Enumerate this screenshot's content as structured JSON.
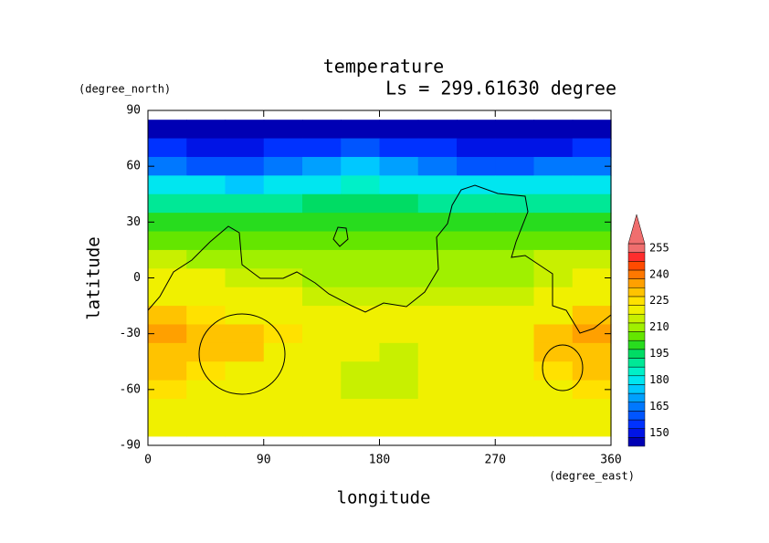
{
  "chart_data": {
    "type": "contour",
    "title": "temperature",
    "subtitle": "Ls = 299.61630 degree",
    "xlabel": "longitude",
    "ylabel": "latitude",
    "xunits": "(degree_east)",
    "yunits": "(degree_north)",
    "xlim": [
      0,
      360
    ],
    "ylim": [
      -90,
      90
    ],
    "xticks": [
      0,
      90,
      180,
      270,
      360
    ],
    "yticks": [
      90,
      60,
      30,
      0,
      -30,
      -60,
      -90
    ],
    "x": [
      15,
      45,
      75,
      105,
      135,
      165,
      195,
      225,
      255,
      285,
      315,
      345
    ],
    "y": [
      80,
      70,
      60,
      50,
      40,
      30,
      20,
      10,
      0,
      -10,
      -20,
      -30,
      -40,
      -50,
      -60,
      -70,
      -80
    ],
    "z": [
      [
        147,
        147,
        147,
        147,
        147,
        147,
        147,
        147,
        147,
        147,
        147,
        147
      ],
      [
        156,
        154,
        153,
        156,
        159,
        161,
        158,
        155,
        154,
        154,
        154,
        156
      ],
      [
        166,
        164,
        161,
        166,
        172,
        176,
        172,
        166,
        164,
        164,
        165,
        166
      ],
      [
        183,
        181,
        179,
        182,
        184,
        186,
        184,
        182,
        182,
        183,
        183,
        183
      ],
      [
        194,
        193,
        193,
        194,
        195,
        196,
        195,
        194,
        194,
        194,
        194,
        194
      ],
      [
        201,
        200,
        200,
        201,
        202,
        203,
        202,
        201,
        201,
        201,
        201,
        201
      ],
      [
        206,
        206,
        206,
        207,
        208,
        209,
        209,
        208,
        208,
        207,
        206,
        206
      ],
      [
        216,
        214,
        213,
        212,
        211,
        212,
        212,
        211,
        211,
        212,
        216,
        216
      ],
      [
        222,
        221,
        219,
        216,
        213,
        213,
        214,
        213,
        213,
        214,
        218,
        222
      ],
      [
        223,
        222,
        222,
        221,
        219,
        217,
        216,
        217,
        216,
        217,
        221,
        223
      ],
      [
        233,
        226,
        224,
        223,
        223,
        222,
        222,
        222,
        222,
        222,
        224,
        232
      ],
      [
        237,
        232,
        231,
        225,
        224,
        223,
        223,
        223,
        223,
        224,
        233,
        237
      ],
      [
        232,
        232,
        230,
        224,
        223,
        222,
        218,
        221,
        223,
        224,
        231,
        232
      ],
      [
        231,
        228,
        223,
        222,
        222,
        217,
        218,
        221,
        222,
        223,
        228,
        231
      ],
      [
        228,
        224,
        222,
        222,
        222,
        218,
        219,
        222,
        222,
        222,
        224,
        228
      ],
      [
        222,
        222,
        222,
        222,
        222,
        222,
        222,
        222,
        222,
        222,
        222,
        222
      ],
      [
        222,
        222,
        222,
        222,
        222,
        222,
        222,
        222,
        222,
        222,
        222,
        222
      ]
    ],
    "levels": [
      145,
      150,
      155,
      160,
      165,
      170,
      175,
      180,
      185,
      190,
      195,
      200,
      205,
      210,
      215,
      220,
      225,
      230,
      235,
      240,
      245,
      250,
      255,
      260
    ],
    "colors": [
      "#0000b4",
      "#0014e6",
      "#0032ff",
      "#0055ff",
      "#0078ff",
      "#00a0ff",
      "#00c8ff",
      "#00e6f0",
      "#00f0c8",
      "#00e896",
      "#00dc64",
      "#28dc1e",
      "#64e600",
      "#a0f000",
      "#c8f000",
      "#f0f000",
      "#ffe100",
      "#ffc300",
      "#ffa000",
      "#ff7800",
      "#ff4b00",
      "#ff2d2d",
      "#f06e6e"
    ],
    "colorbar_ticks": [
      150,
      165,
      180,
      195,
      210,
      225,
      240,
      255
    ]
  }
}
